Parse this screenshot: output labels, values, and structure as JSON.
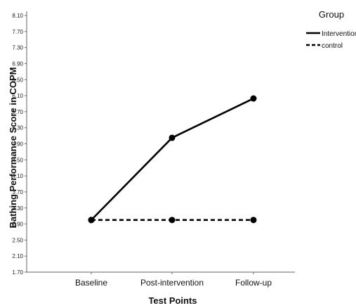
{
  "chart_data": {
    "type": "line",
    "title": "",
    "xlabel": "Test Points",
    "ylabel": "Bathing Performance Score in COPM",
    "categories": [
      "Baseline",
      "Post-intervention",
      "Follow-up"
    ],
    "ylim": [
      1.7,
      8.1
    ],
    "yticks": [
      "1.70",
      "2.10",
      "2.50",
      "2.90",
      "3.30",
      "3.70",
      "4.10",
      "4.50",
      "4.90",
      "5.30",
      "5.70",
      "6.10",
      "6.50",
      "6.90",
      "7.30",
      "7.70",
      "8.10"
    ],
    "grid": false,
    "legend": {
      "title": "Group",
      "placement": "right"
    },
    "series": [
      {
        "name": "Intervention",
        "line_style": "solid",
        "color": "#000000",
        "values": [
          3.0,
          5.05,
          6.03
        ]
      },
      {
        "name": "control",
        "line_style": "dashed",
        "color": "#000000",
        "values": [
          3.0,
          3.0,
          3.0
        ]
      }
    ]
  }
}
